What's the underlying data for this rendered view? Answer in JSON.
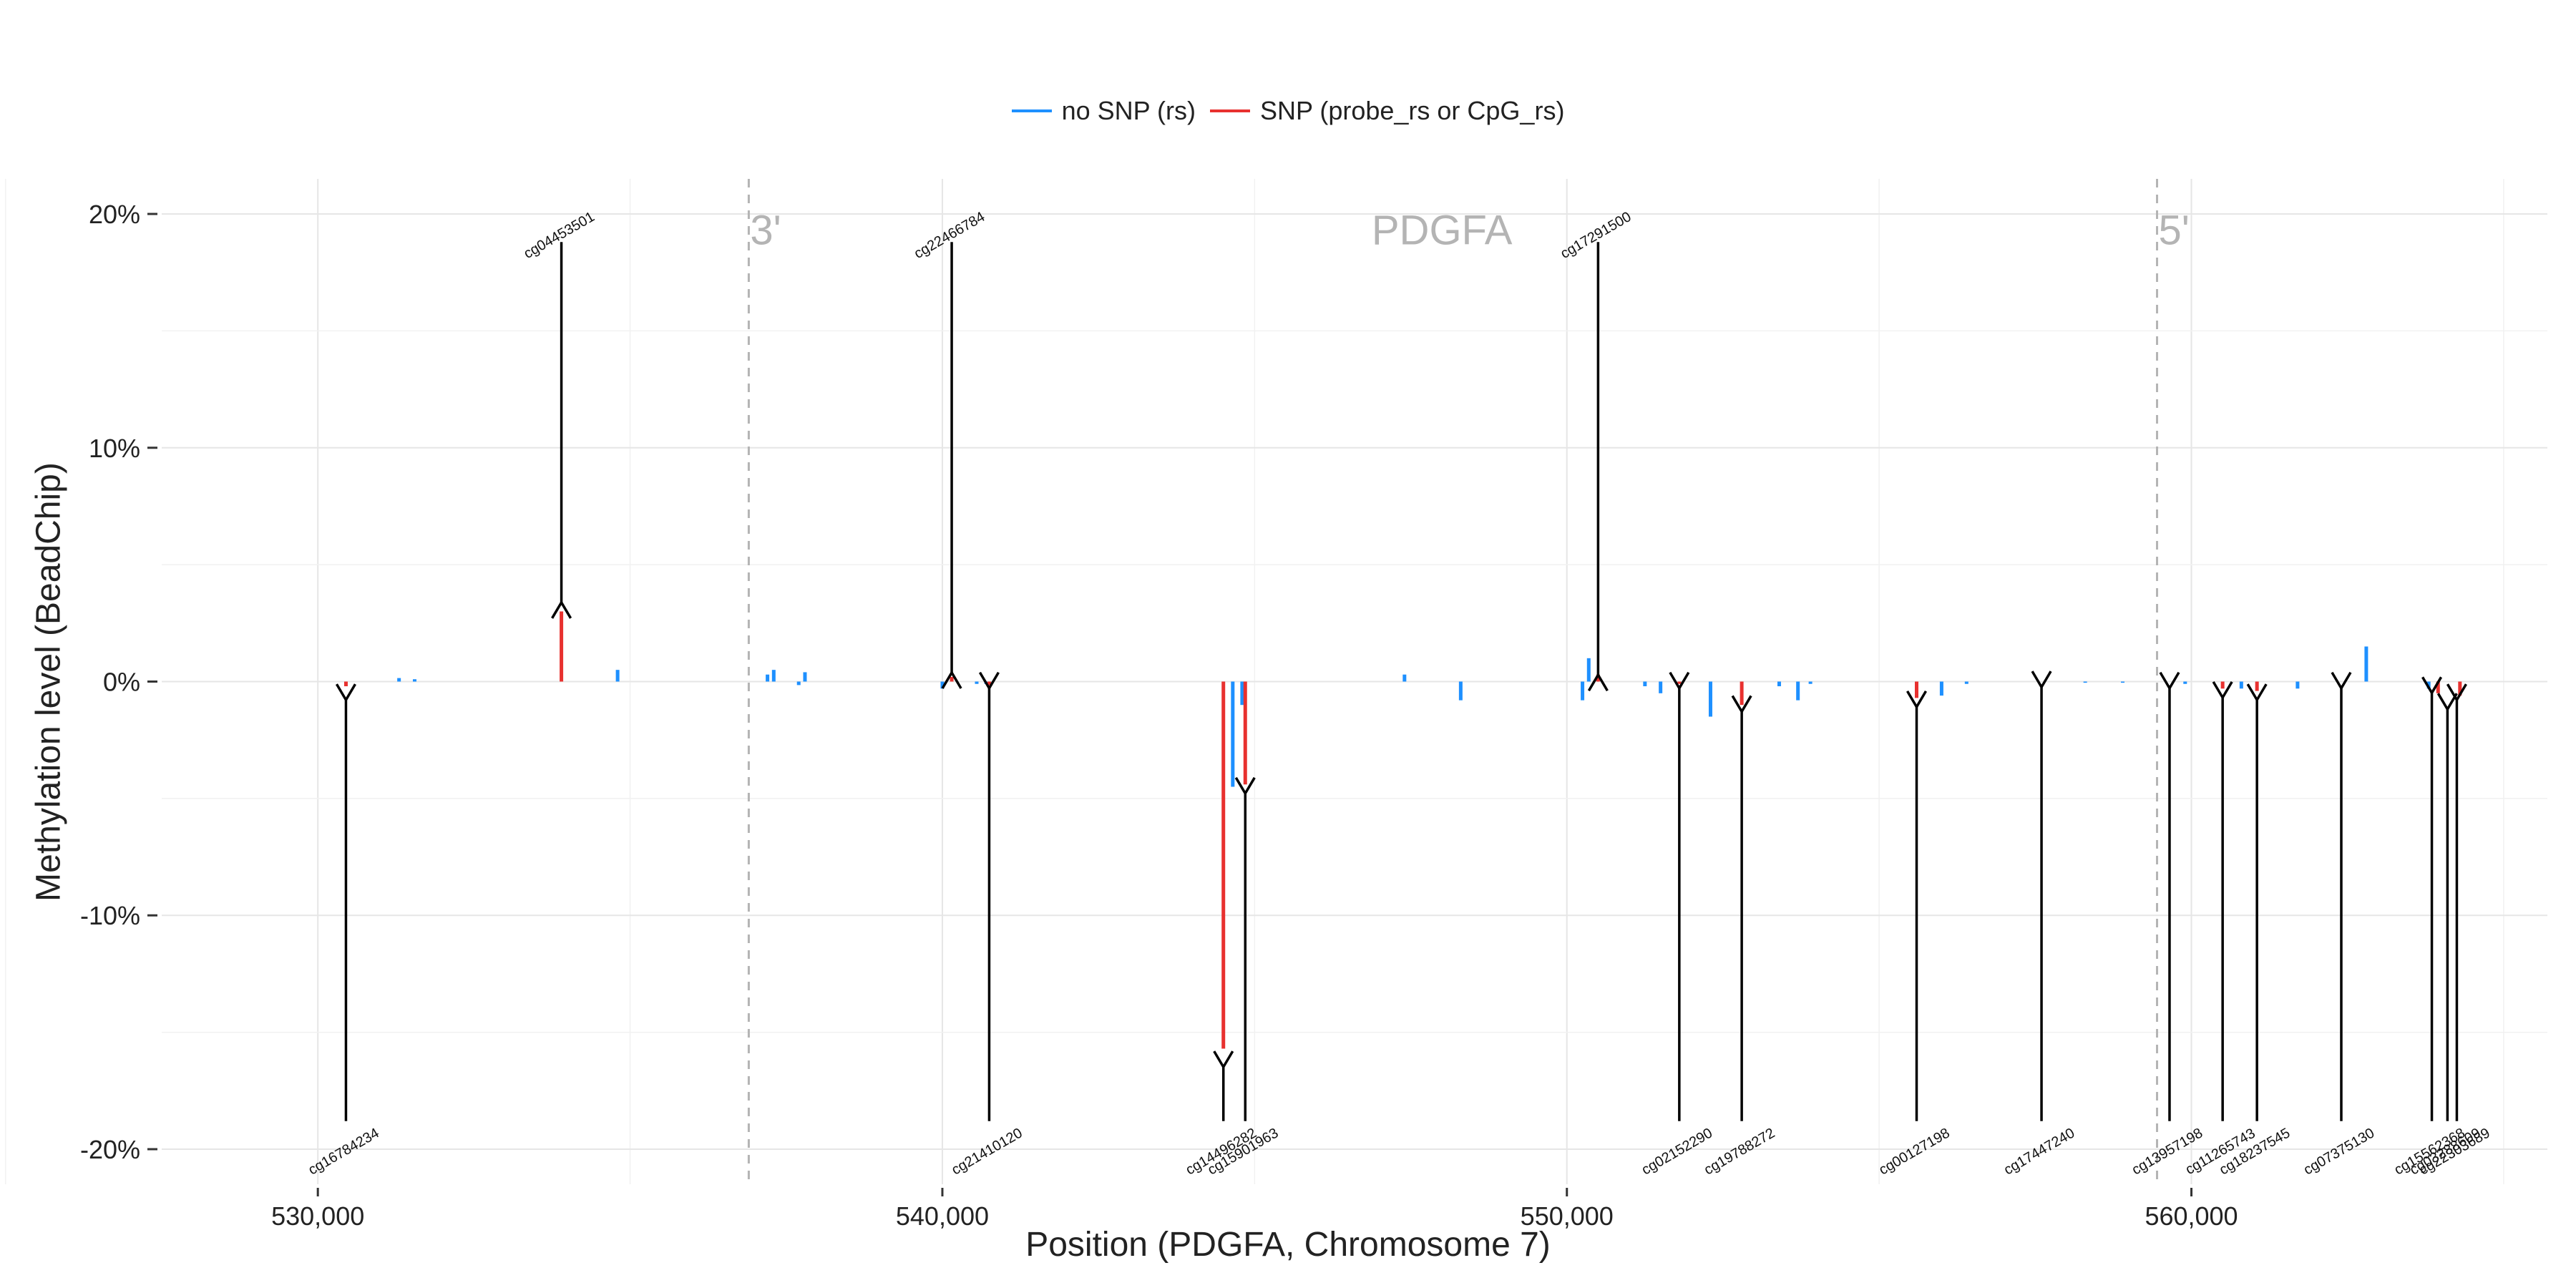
{
  "chart_data": {
    "type": "bar",
    "title": "",
    "xlabel": "Position (PDGFA, Chromosome 7)",
    "ylabel": "Methylation level (BeadChip)",
    "xlim": [
      527500,
      565700
    ],
    "ylim": [
      -21.5,
      21.5
    ],
    "x_ticks": [
      530000,
      540000,
      550000,
      560000
    ],
    "x_tick_labels": [
      "530,000",
      "540,000",
      "550,000",
      "560,000"
    ],
    "y_ticks": [
      20,
      10,
      0,
      -10,
      -20
    ],
    "y_tick_labels": [
      "20%",
      "10%",
      "0%",
      "-10%",
      "-20%"
    ],
    "grid": true,
    "legend_position": "top",
    "colors": {
      "no_snp": "#1E90FF",
      "snp": "#E8312F",
      "arrow": "#000000",
      "gene_marker": "#B4B4B4"
    },
    "legend": [
      {
        "name": "no SNP (rs)",
        "color": "#1E90FF"
      },
      {
        "name": "SNP (probe_rs or CpG_rs)",
        "color": "#E8312F"
      }
    ],
    "gene": {
      "name": "PDGFA",
      "name_x": 548000,
      "start_label": "3'",
      "start_x": 536900,
      "end_label": "5'",
      "end_x": 559450
    },
    "series": [
      {
        "name": "no SNP (rs)",
        "points": [
          {
            "x": 531300,
            "y": 0.15
          },
          {
            "x": 531550,
            "y": 0.1
          },
          {
            "x": 534800,
            "y": 0.5
          },
          {
            "x": 537200,
            "y": 0.3
          },
          {
            "x": 537300,
            "y": 0.5
          },
          {
            "x": 537700,
            "y": -0.15
          },
          {
            "x": 537800,
            "y": 0.4
          },
          {
            "x": 540000,
            "y": -0.3
          },
          {
            "x": 540550,
            "y": -0.1
          },
          {
            "x": 540700,
            "y": -0.1
          },
          {
            "x": 544650,
            "y": -4.5
          },
          {
            "x": 544800,
            "y": -1.0
          },
          {
            "x": 547400,
            "y": 0.3
          },
          {
            "x": 548300,
            "y": -0.8
          },
          {
            "x": 550250,
            "y": -0.8
          },
          {
            "x": 550350,
            "y": 1.0
          },
          {
            "x": 551250,
            "y": -0.2
          },
          {
            "x": 551500,
            "y": -0.5
          },
          {
            "x": 552300,
            "y": -1.5
          },
          {
            "x": 553400,
            "y": -0.2
          },
          {
            "x": 553700,
            "y": -0.8
          },
          {
            "x": 553900,
            "y": -0.1
          },
          {
            "x": 556000,
            "y": -0.6
          },
          {
            "x": 556400,
            "y": -0.1
          },
          {
            "x": 558300,
            "y": -0.05
          },
          {
            "x": 558900,
            "y": -0.05
          },
          {
            "x": 559900,
            "y": -0.1
          },
          {
            "x": 560800,
            "y": -0.3
          },
          {
            "x": 561700,
            "y": -0.3
          },
          {
            "x": 562800,
            "y": 1.5
          },
          {
            "x": 563800,
            "y": -0.3
          }
        ]
      },
      {
        "name": "SNP (probe_rs or CpG_rs)",
        "points": [
          {
            "x": 530450,
            "y": -0.2
          },
          {
            "x": 533900,
            "y": 3.0
          },
          {
            "x": 540150,
            "y": 0.2
          },
          {
            "x": 540750,
            "y": -0.15
          },
          {
            "x": 544500,
            "y": -15.7
          },
          {
            "x": 544850,
            "y": -4.4
          },
          {
            "x": 550500,
            "y": 0.3
          },
          {
            "x": 551800,
            "y": -0.1
          },
          {
            "x": 552800,
            "y": -1.0
          },
          {
            "x": 555600,
            "y": -0.7
          },
          {
            "x": 560500,
            "y": -0.3
          },
          {
            "x": 561050,
            "y": -0.4
          },
          {
            "x": 563950,
            "y": -0.5
          },
          {
            "x": 564300,
            "y": -0.6
          }
        ]
      }
    ],
    "annotations": [
      {
        "label": "cg16784234",
        "x": 530450,
        "tip": -0.6,
        "side": "below"
      },
      {
        "label": "cg04453501",
        "x": 533900,
        "tip": 3.2,
        "side": "above"
      },
      {
        "label": "cg22466784",
        "x": 540150,
        "tip": 0.2,
        "side": "above"
      },
      {
        "label": "cg21410120",
        "x": 540750,
        "tip": -0.1,
        "side": "below"
      },
      {
        "label": "cg14496282",
        "x": 544500,
        "tip": -16.3,
        "side": "below"
      },
      {
        "label": "cg15901963",
        "x": 544850,
        "tip": -4.6,
        "side": "below"
      },
      {
        "label": "cg17291500",
        "x": 550500,
        "tip": 0.1,
        "side": "above"
      },
      {
        "label": "cg02152290",
        "x": 551800,
        "tip": -0.1,
        "side": "below"
      },
      {
        "label": "cg19788272",
        "x": 552800,
        "tip": -1.1,
        "side": "below"
      },
      {
        "label": "cg00127198",
        "x": 555600,
        "tip": -0.9,
        "side": "below"
      },
      {
        "label": "cg17447240",
        "x": 557600,
        "tip": -0.05,
        "side": "below"
      },
      {
        "label": "cg13957198",
        "x": 559650,
        "tip": -0.1,
        "side": "below"
      },
      {
        "label": "cg11265743",
        "x": 560500,
        "tip": -0.5,
        "side": "below"
      },
      {
        "label": "cg18237545",
        "x": 561050,
        "tip": -0.6,
        "side": "below"
      },
      {
        "label": "cg07375130",
        "x": 562400,
        "tip": -0.1,
        "side": "below"
      },
      {
        "label": "cg15562368",
        "x": 563850,
        "tip": -0.3,
        "side": "below"
      },
      {
        "label": "cg03288609",
        "x": 564100,
        "tip": -1.0,
        "side": "below"
      },
      {
        "label": "cg22303689",
        "x": 564250,
        "tip": -0.6,
        "side": "below"
      }
    ]
  }
}
